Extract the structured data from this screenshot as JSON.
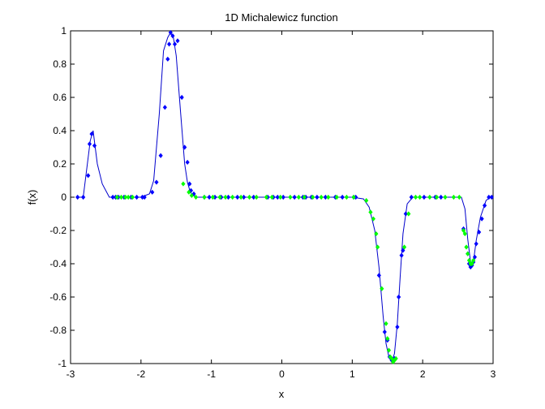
{
  "colors": {
    "background": "#ffffff",
    "axes": "#000000",
    "line": "#0000cc",
    "marker_blue": "#0000ff",
    "marker_green": "#00ff00"
  },
  "chart_data": {
    "type": "line",
    "title": "1D Michalewicz function",
    "xlabel": "x",
    "ylabel": "f(x)",
    "xlim": [
      -3,
      3
    ],
    "ylim": [
      -1,
      1
    ],
    "grid": false,
    "x_ticks": [
      "-3",
      "-2",
      "-1",
      "0",
      "1",
      "2",
      "3"
    ],
    "y_ticks": [
      "-1",
      "-0.8",
      "-0.6",
      "-0.4",
      "-0.2",
      "0",
      "0.2",
      "0.4",
      "0.6",
      "0.8",
      "1"
    ],
    "series": [
      {
        "style": "line",
        "x": [
          -2.9,
          -2.82,
          -2.72,
          -2.68,
          -2.62,
          -2.55,
          -2.45,
          -2.3,
          -2.0,
          -1.88,
          -1.82,
          -1.74,
          -1.68,
          -1.62,
          -1.58,
          -1.54,
          -1.5,
          -1.44,
          -1.38,
          -1.34,
          -1.3,
          -1.26,
          -1.2,
          -1.0,
          0.0,
          1.0,
          1.16,
          1.24,
          1.32,
          1.38,
          1.44,
          1.48,
          1.52,
          1.56,
          1.6,
          1.64,
          1.68,
          1.72,
          1.78,
          1.86,
          2.0,
          2.55,
          2.6,
          2.64,
          2.68,
          2.72,
          2.76,
          2.82,
          2.9,
          2.96
        ],
        "y": [
          0.0,
          0.0,
          0.34,
          0.4,
          0.2,
          0.08,
          0.0,
          0.0,
          0.0,
          0.02,
          0.1,
          0.5,
          0.88,
          0.96,
          0.99,
          0.96,
          0.85,
          0.52,
          0.2,
          0.09,
          0.03,
          0.01,
          0.0,
          0.0,
          0.0,
          0.0,
          -0.01,
          -0.06,
          -0.2,
          -0.42,
          -0.72,
          -0.88,
          -0.96,
          -0.99,
          -0.94,
          -0.76,
          -0.48,
          -0.22,
          -0.04,
          0.0,
          0.0,
          0.0,
          -0.07,
          -0.25,
          -0.39,
          -0.39,
          -0.26,
          -0.12,
          -0.02,
          0.0
        ]
      },
      {
        "style": "markers",
        "color": "blue",
        "x": [
          -2.9,
          -2.82,
          -2.75,
          -2.73,
          -2.7,
          -2.66,
          -2.4,
          -2.36,
          -2.32,
          -2.24,
          -2.14,
          -2.06,
          -1.98,
          -1.95,
          -1.84,
          -1.78,
          -1.72,
          -1.66,
          -1.62,
          -1.6,
          -1.58,
          -1.55,
          -1.52,
          -1.48,
          -1.42,
          -1.38,
          -1.34,
          -1.31,
          -1.29,
          -1.25,
          -1.1,
          -1.03,
          -0.95,
          -0.86,
          -0.76,
          -0.63,
          -0.54,
          -0.4,
          -0.2,
          -0.12,
          -0.06,
          0.02,
          0.18,
          0.3,
          0.34,
          0.42,
          0.5,
          0.62,
          0.76,
          0.86,
          1.02,
          1.05,
          1.38,
          1.46,
          1.5,
          1.53,
          1.56,
          1.6,
          1.64,
          1.66,
          1.7,
          1.72,
          1.76,
          1.84,
          2.02,
          2.18,
          2.26,
          2.58,
          2.64,
          2.66,
          2.68,
          2.7,
          2.72,
          2.74,
          2.76,
          2.8,
          2.84,
          2.88,
          2.94,
          2.98
        ],
        "y": [
          0.0,
          0.0,
          0.13,
          0.32,
          0.38,
          0.31,
          0.0,
          0.0,
          0.0,
          0.0,
          0.0,
          0.0,
          0.0,
          0.0,
          0.03,
          0.09,
          0.25,
          0.54,
          0.83,
          0.92,
          0.99,
          0.97,
          0.92,
          0.94,
          0.6,
          0.3,
          0.21,
          0.08,
          0.04,
          0.02,
          0.0,
          0.0,
          0.0,
          0.0,
          0.0,
          0.0,
          0.0,
          0.0,
          0.0,
          0.0,
          0.0,
          0.0,
          0.0,
          0.0,
          0.0,
          0.0,
          0.0,
          0.0,
          0.0,
          0.0,
          0.0,
          0.0,
          -0.47,
          -0.81,
          -0.86,
          -0.96,
          -0.98,
          -0.97,
          -0.78,
          -0.6,
          -0.35,
          -0.32,
          -0.1,
          0.0,
          0.0,
          0.0,
          0.0,
          -0.19,
          -0.34,
          -0.4,
          -0.42,
          -0.41,
          -0.39,
          -0.36,
          -0.28,
          -0.21,
          -0.13,
          -0.05,
          0.0,
          0.0
        ]
      },
      {
        "style": "markers",
        "color": "green",
        "x": [
          -2.34,
          -2.28,
          -2.22,
          -2.18,
          -2.12,
          -1.4,
          -1.32,
          -1.28,
          -1.22,
          -1.1,
          -0.98,
          -0.88,
          -0.8,
          -0.7,
          -0.58,
          -0.46,
          -0.36,
          -0.22,
          -0.14,
          -0.02,
          0.12,
          0.24,
          0.32,
          0.44,
          0.56,
          0.66,
          0.78,
          0.92,
          1.02,
          1.2,
          1.26,
          1.3,
          1.34,
          1.36,
          1.42,
          1.48,
          1.5,
          1.52,
          1.54,
          1.56,
          1.58,
          1.6,
          1.62,
          1.74,
          1.8,
          1.9,
          1.96,
          2.1,
          2.2,
          2.32,
          2.44,
          2.52,
          2.58,
          2.6,
          2.62,
          2.64,
          2.66,
          2.68,
          2.7,
          2.72
        ],
        "y": [
          0.0,
          0.0,
          0.0,
          0.0,
          0.0,
          0.08,
          0.03,
          0.01,
          0.0,
          0.0,
          0.0,
          0.0,
          0.0,
          0.0,
          0.0,
          0.0,
          0.0,
          0.0,
          0.0,
          0.0,
          0.0,
          0.0,
          0.0,
          0.0,
          0.0,
          0.0,
          0.0,
          0.0,
          0.0,
          -0.02,
          -0.09,
          -0.13,
          -0.22,
          -0.3,
          -0.55,
          -0.76,
          -0.85,
          -0.92,
          -0.96,
          -0.97,
          -0.99,
          -0.98,
          -0.97,
          -0.3,
          -0.1,
          0.0,
          0.0,
          0.0,
          0.0,
          0.0,
          0.0,
          0.0,
          -0.2,
          -0.22,
          -0.3,
          -0.34,
          -0.38,
          -0.4,
          -0.4,
          -0.38
        ]
      }
    ]
  }
}
